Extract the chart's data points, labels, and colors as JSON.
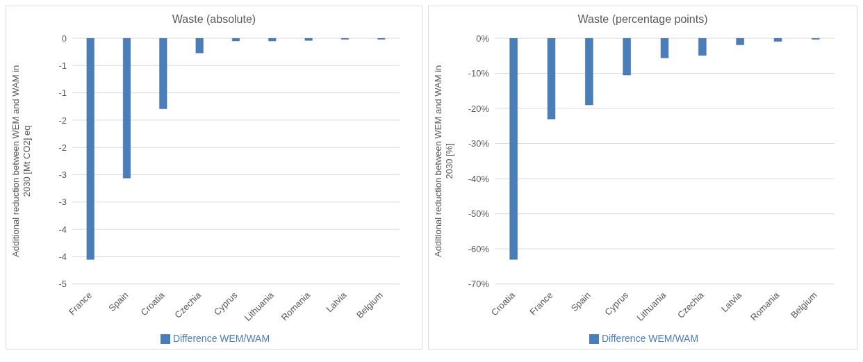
{
  "chart_data": [
    {
      "type": "bar",
      "title": "Waste (absolute)",
      "ylabel": "Additional reduction between WEM and WAM in 2030 [Mt CO2] eq",
      "categories": [
        "France",
        "Spain",
        "Croatia",
        "Czechia",
        "Cyprus",
        "Lithuania",
        "Romania",
        "Latvia",
        "Belgium"
      ],
      "series": [
        {
          "name": "Difference WEM/WAM",
          "color": "#4a7ebb",
          "values": [
            -4.05,
            -2.56,
            -1.29,
            -0.27,
            -0.05,
            -0.05,
            -0.04,
            -0.02,
            -0.02
          ]
        }
      ],
      "ylim": [
        -4.5,
        0
      ],
      "yticks": [
        {
          "value": 0,
          "label": "0"
        },
        {
          "value": -0.5,
          "label": "-1"
        },
        {
          "value": -1,
          "label": "-1"
        },
        {
          "value": -1.5,
          "label": "-2"
        },
        {
          "value": -2,
          "label": "-2"
        },
        {
          "value": -2.5,
          "label": "-3"
        },
        {
          "value": -3,
          "label": "-3"
        },
        {
          "value": -3.5,
          "label": "-4"
        },
        {
          "value": -4,
          "label": "-4"
        },
        {
          "value": -4.5,
          "label": "-5"
        }
      ],
      "grid": "y",
      "legend": "bottom"
    },
    {
      "type": "bar",
      "title": "Waste (percentage points)",
      "ylabel": "Additional reduction between WEM and WAM in 2030 [%]",
      "categories": [
        "Croatia",
        "France",
        "Spain",
        "Cyprus",
        "Lithuania",
        "Czechia",
        "Latvia",
        "Romania",
        "Belgium"
      ],
      "series": [
        {
          "name": "Difference WEM/WAM",
          "color": "#4a7ebb",
          "values": [
            -63,
            -23,
            -19,
            -10.5,
            -5.6,
            -4.9,
            -1.9,
            -0.9,
            -0.3
          ]
        }
      ],
      "ylim": [
        -70,
        0
      ],
      "yticks": [
        {
          "value": 0,
          "label": "0%"
        },
        {
          "value": -10,
          "label": "-10%"
        },
        {
          "value": -20,
          "label": "-20%"
        },
        {
          "value": -30,
          "label": "-30%"
        },
        {
          "value": -40,
          "label": "-40%"
        },
        {
          "value": -50,
          "label": "-50%"
        },
        {
          "value": -60,
          "label": "-60%"
        },
        {
          "value": -70,
          "label": "-70%"
        }
      ],
      "grid": "y",
      "legend": "bottom"
    }
  ]
}
